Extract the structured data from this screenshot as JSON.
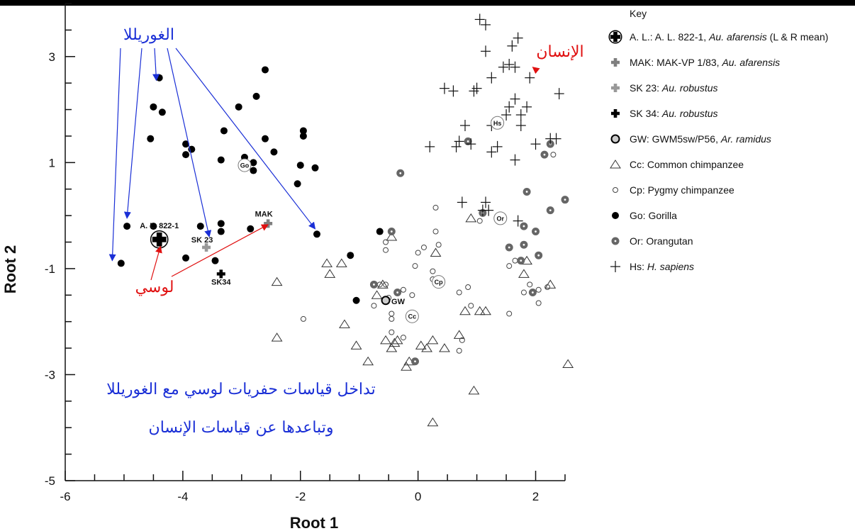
{
  "chart_data": {
    "type": "scatter",
    "title": "",
    "xlabel": "Root 1",
    "ylabel": "Root 2",
    "xlim": [
      -6,
      2.5
    ],
    "ylim": [
      -5,
      4
    ],
    "xticks": [
      -6,
      -4,
      -2,
      0,
      2
    ],
    "yticks": [
      -5,
      -3,
      -1,
      1,
      3
    ],
    "legend_title": "Key",
    "legend_position": "right",
    "legend": [
      {
        "id": "AL",
        "prefix": "A. L.: A. L. 822-1, ",
        "species": "Au. afarensis",
        "suffix": " (L & R mean)"
      },
      {
        "id": "MAK",
        "prefix": "MAK: MAK-VP 1/83, ",
        "species": "Au. afarensis",
        "suffix": ""
      },
      {
        "id": "SK23",
        "prefix": "SK 23: ",
        "species": "Au. robustus",
        "suffix": ""
      },
      {
        "id": "SK34",
        "prefix": "SK 34: ",
        "species": "Au. robustus",
        "suffix": ""
      },
      {
        "id": "GW",
        "prefix": "GW: GWM5sw/P56, ",
        "species": "Ar. ramidus",
        "suffix": ""
      },
      {
        "id": "Cc",
        "prefix": "Cc: Common chimpanzee",
        "species": "",
        "suffix": ""
      },
      {
        "id": "Cp",
        "prefix": "Cp: Pygmy chimpanzee",
        "species": "",
        "suffix": ""
      },
      {
        "id": "Go",
        "prefix": "Go: Gorilla",
        "species": "",
        "suffix": ""
      },
      {
        "id": "Or",
        "prefix": "Or: Orangutan",
        "species": "",
        "suffix": ""
      },
      {
        "id": "Hs",
        "prefix": "Hs: ",
        "species": "H. sapiens",
        "suffix": ""
      }
    ],
    "series": [
      {
        "name": "Go: Gorilla",
        "points": [
          [
            -5.05,
            -0.9
          ],
          [
            -4.95,
            -0.2
          ],
          [
            -4.5,
            -0.2
          ],
          [
            -4.4,
            2.6
          ],
          [
            -4.5,
            2.05
          ],
          [
            -4.35,
            1.95
          ],
          [
            -4.55,
            1.45
          ],
          [
            -3.95,
            1.35
          ],
          [
            -3.95,
            1.15
          ],
          [
            -3.85,
            1.25
          ],
          [
            -3.95,
            -0.8
          ],
          [
            -3.7,
            -0.2
          ],
          [
            -3.45,
            -0.85
          ],
          [
            -3.35,
            -0.15
          ],
          [
            -3.35,
            -0.3
          ],
          [
            -3.35,
            1.05
          ],
          [
            -3.3,
            1.6
          ],
          [
            -3.05,
            2.05
          ],
          [
            -2.95,
            1.1
          ],
          [
            -2.85,
            -0.25
          ],
          [
            -2.8,
            1.0
          ],
          [
            -2.8,
            0.85
          ],
          [
            -2.75,
            2.25
          ],
          [
            -2.6,
            2.75
          ],
          [
            -2.6,
            1.45
          ],
          [
            -2.45,
            1.2
          ],
          [
            -2.05,
            0.6
          ],
          [
            -2.0,
            0.95
          ],
          [
            -1.95,
            1.5
          ],
          [
            -1.95,
            1.6
          ],
          [
            -1.75,
            0.9
          ],
          [
            -1.72,
            -0.35
          ],
          [
            -1.15,
            -0.75
          ],
          [
            -1.05,
            -1.6
          ],
          [
            -0.65,
            -0.3
          ]
        ]
      },
      {
        "name": "Cc: Common chimpanzee",
        "points": [
          [
            -2.4,
            -1.25
          ],
          [
            -2.4,
            -2.3
          ],
          [
            -1.55,
            -0.9
          ],
          [
            -1.5,
            -1.1
          ],
          [
            -1.3,
            -0.9
          ],
          [
            -1.25,
            -2.05
          ],
          [
            -1.05,
            -2.45
          ],
          [
            -0.85,
            -2.75
          ],
          [
            -0.7,
            -1.5
          ],
          [
            -0.6,
            -1.3
          ],
          [
            -0.55,
            -2.35
          ],
          [
            -0.45,
            -2.5
          ],
          [
            -0.45,
            -0.4
          ],
          [
            -0.4,
            -2.4
          ],
          [
            -0.35,
            -2.35
          ],
          [
            -0.2,
            -2.85
          ],
          [
            -0.15,
            -2.75
          ],
          [
            0.05,
            -2.45
          ],
          [
            0.15,
            -2.5
          ],
          [
            0.25,
            -2.35
          ],
          [
            0.25,
            -3.9
          ],
          [
            0.3,
            -0.7
          ],
          [
            0.45,
            -2.5
          ],
          [
            0.7,
            -2.25
          ],
          [
            0.8,
            -1.8
          ],
          [
            0.9,
            -0.05
          ],
          [
            0.95,
            -3.3
          ],
          [
            1.05,
            -1.8
          ],
          [
            1.15,
            -1.8
          ],
          [
            1.8,
            -1.1
          ],
          [
            1.85,
            -0.85
          ],
          [
            2.25,
            -1.3
          ],
          [
            2.55,
            -2.8
          ]
        ]
      },
      {
        "name": "Cp: Pygmy chimpanzee",
        "points": [
          [
            -1.95,
            -1.95
          ],
          [
            -0.75,
            -1.7
          ],
          [
            -0.65,
            -1.3
          ],
          [
            -0.55,
            -0.5
          ],
          [
            -0.55,
            -0.65
          ],
          [
            -0.55,
            -1.3
          ],
          [
            -0.5,
            -1.55
          ],
          [
            -0.45,
            -1.85
          ],
          [
            -0.45,
            -1.95
          ],
          [
            -0.45,
            -2.2
          ],
          [
            -0.25,
            -2.3
          ],
          [
            -0.25,
            -1.4
          ],
          [
            -0.1,
            -1.5
          ],
          [
            -0.05,
            -0.95
          ],
          [
            0.0,
            -0.7
          ],
          [
            0.1,
            -0.6
          ],
          [
            0.25,
            -1.05
          ],
          [
            0.25,
            -1.2
          ],
          [
            0.3,
            -0.3
          ],
          [
            0.3,
            0.15
          ],
          [
            0.35,
            -0.55
          ],
          [
            0.7,
            -1.45
          ],
          [
            0.7,
            -2.55
          ],
          [
            0.75,
            -2.35
          ],
          [
            0.85,
            -1.35
          ],
          [
            0.9,
            -1.7
          ],
          [
            1.05,
            -0.1
          ],
          [
            1.55,
            -1.85
          ],
          [
            1.55,
            -0.95
          ],
          [
            1.65,
            -0.85
          ],
          [
            1.8,
            -1.45
          ],
          [
            1.9,
            -1.3
          ],
          [
            2.05,
            -1.4
          ],
          [
            2.05,
            -1.65
          ],
          [
            2.2,
            -1.35
          ],
          [
            2.3,
            1.15
          ]
        ]
      },
      {
        "name": "Or: Orangutan",
        "points": [
          [
            -0.3,
            0.8
          ],
          [
            -0.75,
            -1.3
          ],
          [
            -0.35,
            -1.45
          ],
          [
            -0.45,
            -0.3
          ],
          [
            -0.05,
            -2.75
          ],
          [
            0.85,
            1.4
          ],
          [
            1.1,
            0.05
          ],
          [
            1.55,
            -0.6
          ],
          [
            1.75,
            -0.85
          ],
          [
            1.8,
            -0.2
          ],
          [
            1.8,
            -0.55
          ],
          [
            1.85,
            0.45
          ],
          [
            1.95,
            -1.45
          ],
          [
            2.0,
            -0.3
          ],
          [
            2.05,
            -0.75
          ],
          [
            2.15,
            1.15
          ],
          [
            2.25,
            1.35
          ],
          [
            2.25,
            0.1
          ],
          [
            2.5,
            0.3
          ]
        ]
      },
      {
        "name": "Hs: H. sapiens",
        "points": [
          [
            1.05,
            3.7
          ],
          [
            1.15,
            3.6
          ],
          [
            1.15,
            3.1
          ],
          [
            0.45,
            2.4
          ],
          [
            0.6,
            2.35
          ],
          [
            0.95,
            2.35
          ],
          [
            1.0,
            2.4
          ],
          [
            1.25,
            2.6
          ],
          [
            1.45,
            2.8
          ],
          [
            1.55,
            2.85
          ],
          [
            1.65,
            2.8
          ],
          [
            1.6,
            3.2
          ],
          [
            1.7,
            3.35
          ],
          [
            1.9,
            2.6
          ],
          [
            2.4,
            2.3
          ],
          [
            1.5,
            1.9
          ],
          [
            1.55,
            2.05
          ],
          [
            1.65,
            2.2
          ],
          [
            1.75,
            1.9
          ],
          [
            1.85,
            2.05
          ],
          [
            1.75,
            1.7
          ],
          [
            1.25,
            1.7
          ],
          [
            0.8,
            1.7
          ],
          [
            0.7,
            1.4
          ],
          [
            0.9,
            1.35
          ],
          [
            1.25,
            1.2
          ],
          [
            1.35,
            1.3
          ],
          [
            0.65,
            1.3
          ],
          [
            0.2,
            1.3
          ],
          [
            1.65,
            1.05
          ],
          [
            2.0,
            1.35
          ],
          [
            2.25,
            1.45
          ],
          [
            2.35,
            1.45
          ],
          [
            0.75,
            0.25
          ],
          [
            1.15,
            0.25
          ],
          [
            1.1,
            0.1
          ],
          [
            1.2,
            0.1
          ],
          [
            1.7,
            -0.1
          ]
        ]
      }
    ],
    "specimens": [
      {
        "id": "AL",
        "label": "A. L. 822-1",
        "x": -4.4,
        "y": -0.45
      },
      {
        "id": "MAK",
        "label": "MAK",
        "x": -2.55,
        "y": -0.15
      },
      {
        "id": "SK23",
        "label": "SK 23",
        "x": -3.6,
        "y": -0.6
      },
      {
        "id": "SK34",
        "label": "SK34",
        "x": -3.35,
        "y": -1.1
      },
      {
        "id": "GW",
        "label": "GW",
        "x": -0.55,
        "y": -1.6
      }
    ],
    "centroids": [
      {
        "label": "Go",
        "x": -2.95,
        "y": 0.95
      },
      {
        "label": "Hs",
        "x": 1.35,
        "y": 1.75
      },
      {
        "label": "Or",
        "x": 1.4,
        "y": -0.05
      },
      {
        "label": "Cp",
        "x": 0.35,
        "y": -1.25
      },
      {
        "label": "Cc",
        "x": -0.1,
        "y": -1.9
      }
    ],
    "annotations": {
      "gorilla": "الغوريللا",
      "human": "الإنسان",
      "lucy": "لوسي",
      "caption_line1": "تداخل قياسات حفريات لوسي مع الغوريللا",
      "caption_line2": "وتباعدها عن قياسات الإنسان"
    },
    "colors": {
      "blue": "#1a2fd6",
      "red": "#e01010",
      "orangutan": "#666666",
      "sk23": "#999999",
      "mak": "#7f7f7f"
    }
  }
}
